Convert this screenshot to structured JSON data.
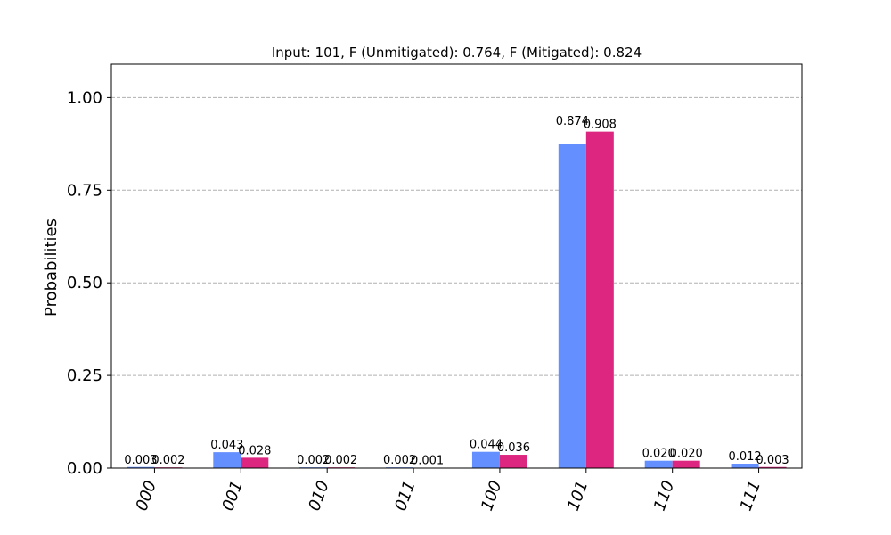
{
  "chart_data": {
    "type": "bar",
    "title": "Input: 101, F (Unmitigated): 0.764, F (Mitigated): 0.824",
    "xlabel": "",
    "ylabel": "Probabilities",
    "ylim": [
      0,
      1.09
    ],
    "yticks": [
      0.0,
      0.25,
      0.5,
      0.75,
      1.0
    ],
    "ytick_labels": [
      "0.00",
      "0.25",
      "0.50",
      "0.75",
      "1.00"
    ],
    "categories": [
      "000",
      "001",
      "010",
      "011",
      "100",
      "101",
      "110",
      "111"
    ],
    "grid": "horizontal-dashed",
    "series": [
      {
        "color": "#648fff",
        "values": [
          0.003,
          0.043,
          0.002,
          0.002,
          0.044,
          0.874,
          0.02,
          0.012
        ],
        "labels": [
          "0.003",
          "0.043",
          "0.002",
          "0.002",
          "0.044",
          "0.874",
          "0.020",
          "0.012"
        ]
      },
      {
        "color": "#dc267f",
        "values": [
          0.002,
          0.028,
          0.002,
          0.001,
          0.036,
          0.908,
          0.02,
          0.003
        ],
        "labels": [
          "0.002",
          "0.028",
          "0.002",
          "0.001",
          "0.036",
          "0.908",
          "0.020",
          "0.003"
        ]
      }
    ]
  }
}
